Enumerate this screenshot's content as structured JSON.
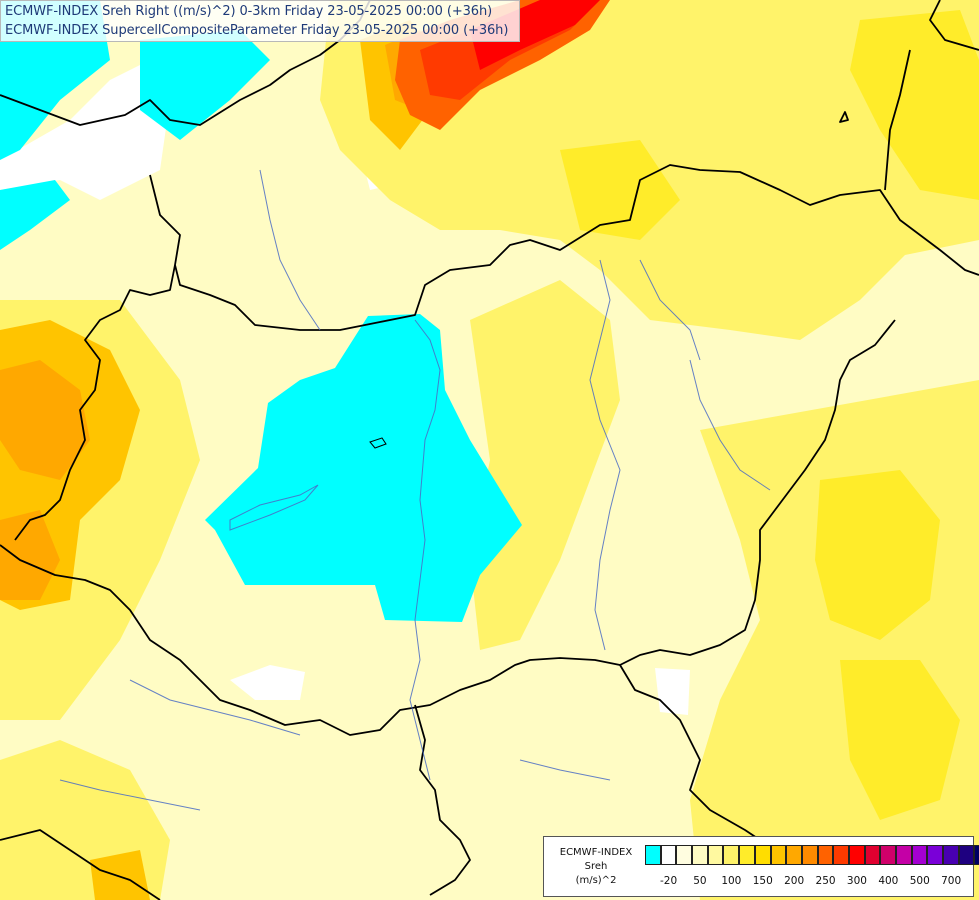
{
  "header": {
    "line1": "ECMWF-INDEX Sreh Right ((m/s)^2) 0-3km Friday 23-05-2025 00:00 (+36h)",
    "line2": "ECMWF-INDEX SupercellCompositeParameter Friday 23-05-2025 00:00 (+36h)"
  },
  "legend": {
    "source": "ECMWF-INDEX",
    "variable": "Sreh",
    "unit": "(m/s)^2",
    "ticks": [
      "-20",
      "50",
      "100",
      "150",
      "200",
      "250",
      "300",
      "400",
      "500",
      "700"
    ],
    "colors": [
      "#00ffff",
      "#ffffff",
      "#fffde0",
      "#fffcc4",
      "#fff9a0",
      "#fff36a",
      "#ffec2a",
      "#ffdd00",
      "#ffc400",
      "#ffa800",
      "#ff8a00",
      "#ff6200",
      "#ff3a00",
      "#ff0000",
      "#e00030",
      "#d0006a",
      "#c400a6",
      "#a400d2",
      "#7a00d8",
      "#4800b0",
      "#1e0080",
      "#000064"
    ]
  },
  "colors": {
    "low": "#00ffff",
    "background": "#fffcc4",
    "mid": "#fff36a",
    "high": "#ffc400",
    "peak": "#ff1a1a",
    "borders": "#000000",
    "rivers": "#4a6bc4"
  }
}
